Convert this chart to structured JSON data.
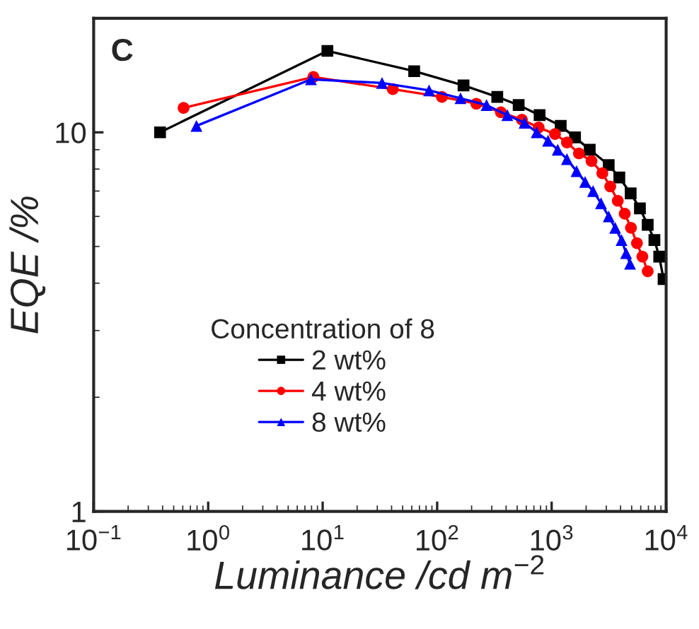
{
  "chart_data": {
    "type": "line",
    "xlabel": "Luminance /cd m$^{−2}$",
    "ylabel": "EQE /%",
    "legend_title": "Concentration of 8",
    "annotations": [
      "C"
    ],
    "log": "xy",
    "legend": "bottom",
    "grid": false,
    "xlim": [
      0.1,
      10000
    ],
    "xticks": [
      {
        "value": 0.1,
        "label": "10$^{−1}$"
      },
      {
        "value": 1,
        "label": "10$^{0}$"
      },
      {
        "value": 10,
        "label": "10$^{1}$"
      },
      {
        "value": 100,
        "label": "10$^{2}$"
      },
      {
        "value": 1000,
        "label": "10$^{3}$"
      },
      {
        "value": 10000,
        "label": "10$^{4}$"
      }
    ],
    "ylim": [
      1,
      20
    ],
    "yticks": [
      1,
      10
    ],
    "series": [
      {
        "name": "2 wt%",
        "color": "#000000",
        "marker": "square",
        "x": [
          0.38,
          11,
          63,
          170,
          335,
          515,
          785,
          1200,
          1600,
          2150,
          3150,
          3900,
          4900,
          5900,
          6900,
          7900,
          8700,
          9500
        ],
        "values": [
          10.0,
          16.4,
          14.5,
          13.3,
          12.4,
          11.8,
          11.1,
          10.4,
          9.7,
          9.0,
          8.2,
          7.6,
          6.9,
          6.3,
          5.7,
          5.2,
          4.7,
          4.1
        ]
      },
      {
        "name": "4 wt%",
        "color": "#ff0000",
        "marker": "circle",
        "x": [
          0.61,
          8.3,
          41,
          110,
          220,
          360,
          550,
          770,
          1070,
          1360,
          1730,
          2230,
          2770,
          3250,
          3780,
          4350,
          4930,
          5560,
          6200,
          6900
        ],
        "values": [
          11.6,
          14.0,
          13.0,
          12.4,
          11.9,
          11.3,
          10.8,
          10.3,
          9.9,
          9.4,
          8.8,
          8.4,
          7.8,
          7.2,
          6.6,
          6.1,
          5.6,
          5.1,
          4.7,
          4.3
        ]
      },
      {
        "name": "8 wt%",
        "color": "#0000ff",
        "marker": "triangle",
        "x": [
          0.79,
          7.9,
          33,
          85,
          160,
          270,
          410,
          580,
          740,
          930,
          1130,
          1360,
          1650,
          1960,
          2300,
          2700,
          3150,
          3590,
          4080,
          4470,
          4840
        ],
        "values": [
          10.4,
          13.8,
          13.5,
          12.9,
          12.3,
          11.8,
          11.1,
          10.6,
          10.0,
          9.5,
          9.0,
          8.5,
          7.9,
          7.4,
          7.0,
          6.5,
          6.0,
          5.6,
          5.2,
          4.8,
          4.5
        ]
      }
    ]
  }
}
